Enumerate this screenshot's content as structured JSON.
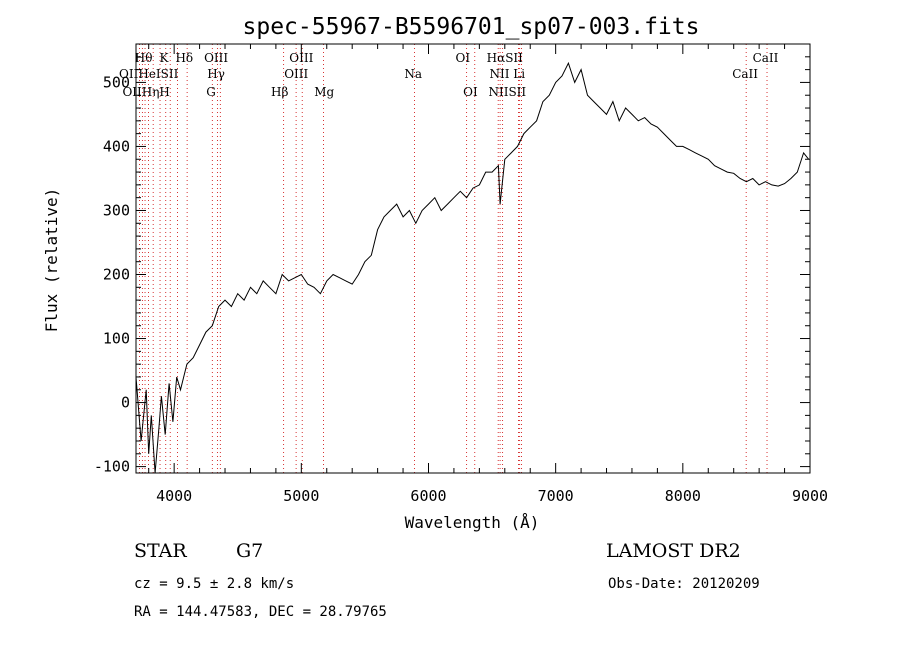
{
  "chart_data": {
    "type": "line",
    "title": "spec-55967-B5596701_sp07-003.fits",
    "xlabel": "Wavelength (Å)",
    "ylabel": "Flux (relative)",
    "xlim": [
      3700,
      9000
    ],
    "ylim": [
      -110,
      560
    ],
    "x_ticks": [
      4000,
      5000,
      6000,
      7000,
      8000,
      9000
    ],
    "y_ticks": [
      -100,
      0,
      100,
      200,
      300,
      400,
      500
    ],
    "grid": false,
    "spectrum": {
      "x": [
        3700,
        3740,
        3780,
        3800,
        3820,
        3850,
        3880,
        3900,
        3930,
        3960,
        3990,
        4020,
        4050,
        4100,
        4150,
        4200,
        4250,
        4300,
        4350,
        4400,
        4450,
        4500,
        4550,
        4600,
        4650,
        4700,
        4750,
        4800,
        4850,
        4900,
        4950,
        5000,
        5050,
        5100,
        5150,
        5200,
        5250,
        5300,
        5350,
        5400,
        5450,
        5500,
        5550,
        5600,
        5650,
        5700,
        5750,
        5800,
        5850,
        5900,
        5950,
        6000,
        6050,
        6100,
        6150,
        6200,
        6250,
        6300,
        6350,
        6400,
        6450,
        6500,
        6550,
        6563,
        6600,
        6650,
        6700,
        6750,
        6800,
        6850,
        6900,
        6950,
        7000,
        7050,
        7100,
        7150,
        7200,
        7250,
        7300,
        7350,
        7400,
        7450,
        7500,
        7550,
        7600,
        7650,
        7700,
        7750,
        7800,
        7850,
        7900,
        7950,
        8000,
        8050,
        8100,
        8150,
        8200,
        8250,
        8300,
        8350,
        8400,
        8450,
        8500,
        8550,
        8600,
        8650,
        8700,
        8750,
        8800,
        8850,
        8900,
        8950,
        8990
      ],
      "y": [
        40,
        -60,
        20,
        -80,
        -20,
        -110,
        -40,
        10,
        -50,
        30,
        -30,
        40,
        20,
        60,
        70,
        90,
        110,
        120,
        150,
        160,
        150,
        170,
        160,
        180,
        170,
        190,
        180,
        170,
        200,
        190,
        195,
        200,
        185,
        180,
        170,
        190,
        200,
        195,
        190,
        185,
        200,
        220,
        230,
        270,
        290,
        300,
        310,
        290,
        300,
        280,
        300,
        310,
        320,
        300,
        310,
        320,
        330,
        320,
        335,
        340,
        360,
        360,
        370,
        310,
        380,
        390,
        400,
        420,
        430,
        440,
        470,
        480,
        500,
        510,
        530,
        500,
        520,
        480,
        470,
        460,
        450,
        470,
        440,
        460,
        450,
        440,
        445,
        435,
        430,
        420,
        410,
        400,
        400,
        395,
        390,
        385,
        380,
        370,
        365,
        360,
        358,
        350,
        345,
        350,
        340,
        345,
        340,
        338,
        342,
        350,
        360,
        390,
        380
      ]
    },
    "line_markers": {
      "top_row": [
        "Hθ",
        "K",
        "Hδ",
        "OIII",
        "OIII",
        "OI",
        "HαSII",
        "CaII"
      ],
      "row2": [
        "OIIHeISII",
        "Hγ",
        "OIII",
        "Na",
        "NII Li",
        "CaII"
      ],
      "row3": [
        "OIIHηH",
        "G",
        "Hβ",
        "Mg",
        "OI",
        "NIISII"
      ],
      "wavelengths": [
        3727,
        3750,
        3771,
        3798,
        3835,
        3889,
        3934,
        3969,
        4026,
        4102,
        4300,
        4340,
        4363,
        4861,
        4959,
        5007,
        5175,
        5890,
        6300,
        6364,
        6548,
        6563,
        6583,
        6708,
        6717,
        6731,
        8498,
        8662
      ]
    }
  },
  "info": {
    "object_class": "STAR",
    "subclass": "G7",
    "survey": "LAMOST DR2",
    "velocity": "cz = 9.5 ± 2.8 km/s",
    "obs_date": "Obs-Date: 20120209",
    "coords": "RA = 144.47583, DEC =  28.79765"
  },
  "colors": {
    "line": "#000000",
    "marker": "#cc0000",
    "axes": "#000000"
  }
}
